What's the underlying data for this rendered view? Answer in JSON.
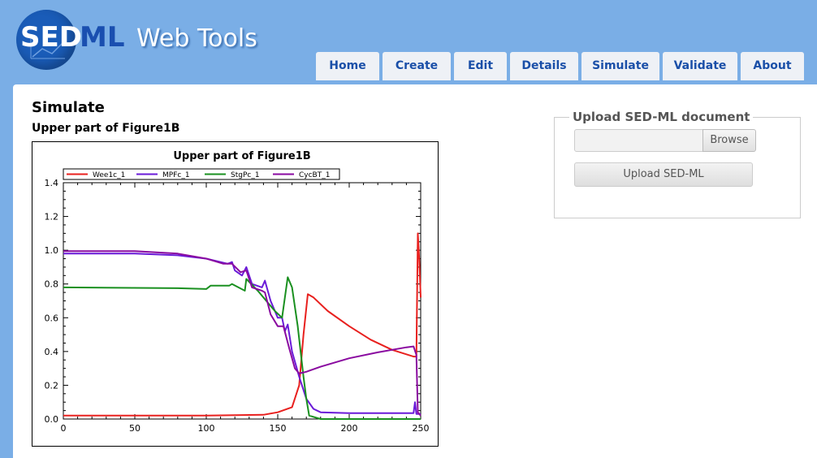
{
  "logo": {
    "part1": "SED",
    "part2": "ML",
    "tagline": "Web Tools"
  },
  "nav": {
    "tabs": [
      {
        "label": "Home"
      },
      {
        "label": "Create"
      },
      {
        "label": "Edit"
      },
      {
        "label": "Details"
      },
      {
        "label": "Simulate"
      },
      {
        "label": "Validate"
      },
      {
        "label": "About"
      }
    ]
  },
  "page": {
    "title": "Simulate",
    "subtitle": "Upper part of Figure1B"
  },
  "upload": {
    "legend": "Upload SED-ML document",
    "browse_label": "Browse",
    "submit_label": "Upload SED-ML"
  },
  "colors": {
    "header_bg": "#7aaee6",
    "accent": "#1a4fa8"
  },
  "chart_data": {
    "type": "line",
    "title": "Upper part of Figure1B",
    "xlabel": "",
    "ylabel": "",
    "xlim": [
      0,
      250
    ],
    "ylim": [
      0,
      1.4
    ],
    "xticks": [
      0,
      50,
      100,
      150,
      200,
      250
    ],
    "yticks": [
      0.0,
      0.2,
      0.4,
      0.6,
      0.8,
      1.0,
      1.2,
      1.4
    ],
    "ytick_labels": [
      "0.0",
      "0.2",
      "0.4",
      "0.6",
      "0.8",
      "1.0",
      "1.2",
      "1.4"
    ],
    "legend_position": "top",
    "series": [
      {
        "name": "Wee1c_1",
        "color": "#e8201e",
        "points": [
          [
            0,
            0.02
          ],
          [
            50,
            0.02
          ],
          [
            100,
            0.02
          ],
          [
            140,
            0.025
          ],
          [
            150,
            0.04
          ],
          [
            160,
            0.07
          ],
          [
            165,
            0.2
          ],
          [
            168,
            0.5
          ],
          [
            171,
            0.74
          ],
          [
            175,
            0.72
          ],
          [
            185,
            0.64
          ],
          [
            200,
            0.55
          ],
          [
            215,
            0.47
          ],
          [
            230,
            0.41
          ],
          [
            245,
            0.37
          ],
          [
            247,
            0.37
          ],
          [
            248,
            1.1
          ],
          [
            249,
            0.95
          ],
          [
            250,
            0.72
          ]
        ]
      },
      {
        "name": "MPFc_1",
        "color": "#6a1ad8",
        "points": [
          [
            0,
            0.98
          ],
          [
            50,
            0.98
          ],
          [
            80,
            0.97
          ],
          [
            100,
            0.95
          ],
          [
            115,
            0.92
          ],
          [
            118,
            0.93
          ],
          [
            120,
            0.88
          ],
          [
            125,
            0.85
          ],
          [
            128,
            0.9
          ],
          [
            132,
            0.8
          ],
          [
            139,
            0.78
          ],
          [
            141,
            0.82
          ],
          [
            145,
            0.7
          ],
          [
            150,
            0.6
          ],
          [
            153,
            0.6
          ],
          [
            155,
            0.52
          ],
          [
            157,
            0.56
          ],
          [
            160,
            0.4
          ],
          [
            165,
            0.25
          ],
          [
            170,
            0.12
          ],
          [
            175,
            0.06
          ],
          [
            180,
            0.04
          ],
          [
            200,
            0.035
          ],
          [
            240,
            0.035
          ],
          [
            245,
            0.035
          ],
          [
            246,
            0.1
          ],
          [
            247,
            0.03
          ],
          [
            250,
            0.03
          ]
        ]
      },
      {
        "name": "StgPc_1",
        "color": "#1a9020",
        "points": [
          [
            0,
            0.78
          ],
          [
            80,
            0.775
          ],
          [
            100,
            0.77
          ],
          [
            103,
            0.79
          ],
          [
            116,
            0.79
          ],
          [
            118,
            0.8
          ],
          [
            127,
            0.76
          ],
          [
            128,
            0.83
          ],
          [
            136,
            0.76
          ],
          [
            140,
            0.72
          ],
          [
            143,
            0.69
          ],
          [
            148,
            0.64
          ],
          [
            153,
            0.6
          ],
          [
            157,
            0.84
          ],
          [
            160,
            0.78
          ],
          [
            164,
            0.55
          ],
          [
            168,
            0.25
          ],
          [
            170,
            0.12
          ],
          [
            172,
            0.02
          ],
          [
            180,
            0.0
          ],
          [
            250,
            0.0
          ]
        ]
      },
      {
        "name": "CycBT_1",
        "color": "#8a0aa0",
        "points": [
          [
            0,
            0.995
          ],
          [
            50,
            0.995
          ],
          [
            80,
            0.98
          ],
          [
            100,
            0.95
          ],
          [
            112,
            0.92
          ],
          [
            118,
            0.92
          ],
          [
            124,
            0.87
          ],
          [
            128,
            0.88
          ],
          [
            132,
            0.78
          ],
          [
            139,
            0.76
          ],
          [
            141,
            0.75
          ],
          [
            145,
            0.62
          ],
          [
            150,
            0.55
          ],
          [
            154,
            0.55
          ],
          [
            158,
            0.42
          ],
          [
            162,
            0.3
          ],
          [
            165,
            0.27
          ],
          [
            170,
            0.28
          ],
          [
            180,
            0.31
          ],
          [
            200,
            0.36
          ],
          [
            220,
            0.395
          ],
          [
            240,
            0.425
          ],
          [
            245,
            0.43
          ],
          [
            247,
            0.38
          ],
          [
            248,
            0.04
          ],
          [
            250,
            0.02
          ]
        ]
      }
    ]
  }
}
